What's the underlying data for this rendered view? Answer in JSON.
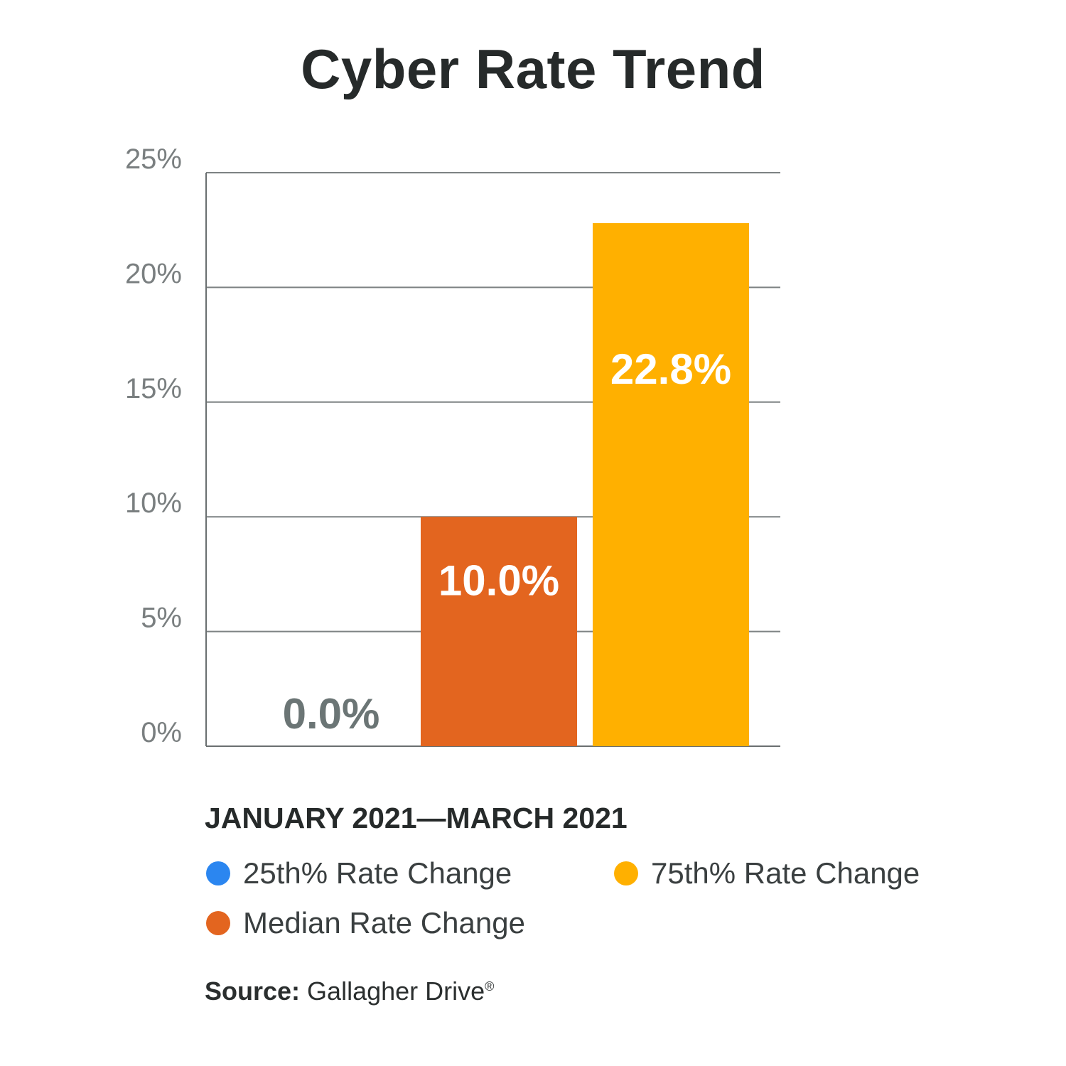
{
  "title": "Cyber Rate Trend",
  "period": "JANUARY 2021—MARCH 2021",
  "source": {
    "label": "Source:",
    "text": " Gallagher Drive",
    "mark": "®"
  },
  "legend": [
    {
      "label": "25th% Rate Change",
      "color": "#2b86f0"
    },
    {
      "label": "75th% Rate Change",
      "color": "#ffb000"
    },
    {
      "label": "Median Rate Change",
      "color": "#e3651f"
    }
  ],
  "chart_data": {
    "type": "bar",
    "categories": [
      "25th% Rate Change",
      "Median Rate Change",
      "75th% Rate Change"
    ],
    "values": [
      0.0,
      10.0,
      22.8
    ],
    "data_labels": [
      "0.0%",
      "10.0%",
      "22.8%"
    ],
    "colors": [
      "#2b86f0",
      "#e3651f",
      "#ffb000"
    ],
    "label_colors": [
      "#6b7575",
      "#ffffff",
      "#ffffff"
    ],
    "y_ticks": [
      0,
      5,
      10,
      15,
      20,
      25
    ],
    "y_tick_labels": [
      "0%",
      "5%",
      "10%",
      "15%",
      "20%",
      "25%"
    ],
    "ylim": [
      0,
      25
    ],
    "grid": true,
    "legend_position": "bottom"
  }
}
